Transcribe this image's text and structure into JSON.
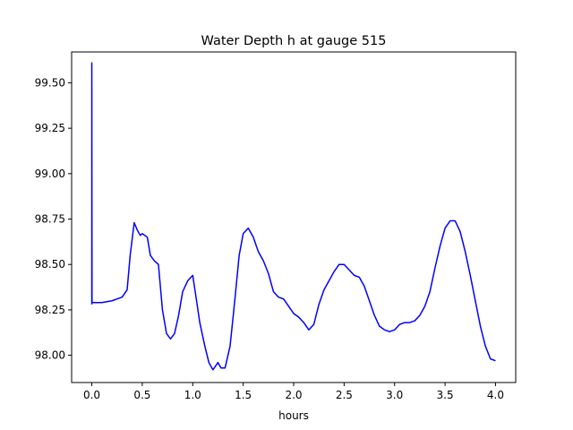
{
  "chart_data": {
    "type": "line",
    "title": "Water Depth h at gauge 515",
    "xlabel": "hours",
    "ylabel": "",
    "xlim": [
      -0.2,
      4.2
    ],
    "ylim": [
      97.85,
      99.67
    ],
    "xticks": [
      0.0,
      0.5,
      1.0,
      1.5,
      2.0,
      2.5,
      3.0,
      3.5,
      4.0
    ],
    "xtick_labels": [
      "0.0",
      "0.5",
      "1.0",
      "1.5",
      "2.0",
      "2.5",
      "3.0",
      "3.5",
      "4.0"
    ],
    "yticks": [
      98.0,
      98.25,
      98.5,
      98.75,
      99.0,
      99.25,
      99.5
    ],
    "ytick_labels": [
      "98.00",
      "98.25",
      "98.50",
      "98.75",
      "99.00",
      "99.25",
      "99.50"
    ],
    "grid": false,
    "series": [
      {
        "color": "#0000ff",
        "x": [
          0.0,
          0.0,
          0.002,
          0.1,
          0.2,
          0.3,
          0.35,
          0.38,
          0.42,
          0.45,
          0.48,
          0.5,
          0.55,
          0.58,
          0.62,
          0.66,
          0.7,
          0.74,
          0.78,
          0.82,
          0.86,
          0.9,
          0.95,
          1.0,
          1.03,
          1.07,
          1.12,
          1.16,
          1.2,
          1.25,
          1.28,
          1.32,
          1.37,
          1.42,
          1.46,
          1.5,
          1.55,
          1.6,
          1.65,
          1.7,
          1.75,
          1.8,
          1.85,
          1.9,
          1.95,
          2.0,
          2.05,
          2.1,
          2.15,
          2.2,
          2.25,
          2.3,
          2.35,
          2.4,
          2.45,
          2.5,
          2.55,
          2.6,
          2.65,
          2.7,
          2.75,
          2.8,
          2.85,
          2.9,
          2.95,
          3.0,
          3.05,
          3.1,
          3.15,
          3.2,
          3.25,
          3.3,
          3.35,
          3.4,
          3.45,
          3.5,
          3.55,
          3.6,
          3.65,
          3.7,
          3.75,
          3.8,
          3.85,
          3.9,
          3.95,
          4.0
        ],
        "y": [
          98.28,
          99.61,
          98.29,
          98.29,
          98.3,
          98.32,
          98.36,
          98.55,
          98.73,
          98.69,
          98.66,
          98.67,
          98.65,
          98.55,
          98.52,
          98.5,
          98.25,
          98.12,
          98.09,
          98.12,
          98.22,
          98.35,
          98.41,
          98.44,
          98.33,
          98.18,
          98.05,
          97.96,
          97.92,
          97.96,
          97.93,
          97.93,
          98.05,
          98.32,
          98.55,
          98.67,
          98.7,
          98.65,
          98.57,
          98.52,
          98.45,
          98.35,
          98.32,
          98.31,
          98.27,
          98.23,
          98.21,
          98.18,
          98.14,
          98.17,
          98.28,
          98.36,
          98.41,
          98.46,
          98.5,
          98.5,
          98.47,
          98.44,
          98.43,
          98.38,
          98.3,
          98.22,
          98.16,
          98.14,
          98.13,
          98.14,
          98.17,
          98.18,
          98.18,
          98.19,
          98.22,
          98.27,
          98.35,
          98.48,
          98.6,
          98.7,
          98.74,
          98.74,
          98.68,
          98.57,
          98.44,
          98.3,
          98.16,
          98.05,
          97.98,
          97.97
        ]
      }
    ]
  }
}
